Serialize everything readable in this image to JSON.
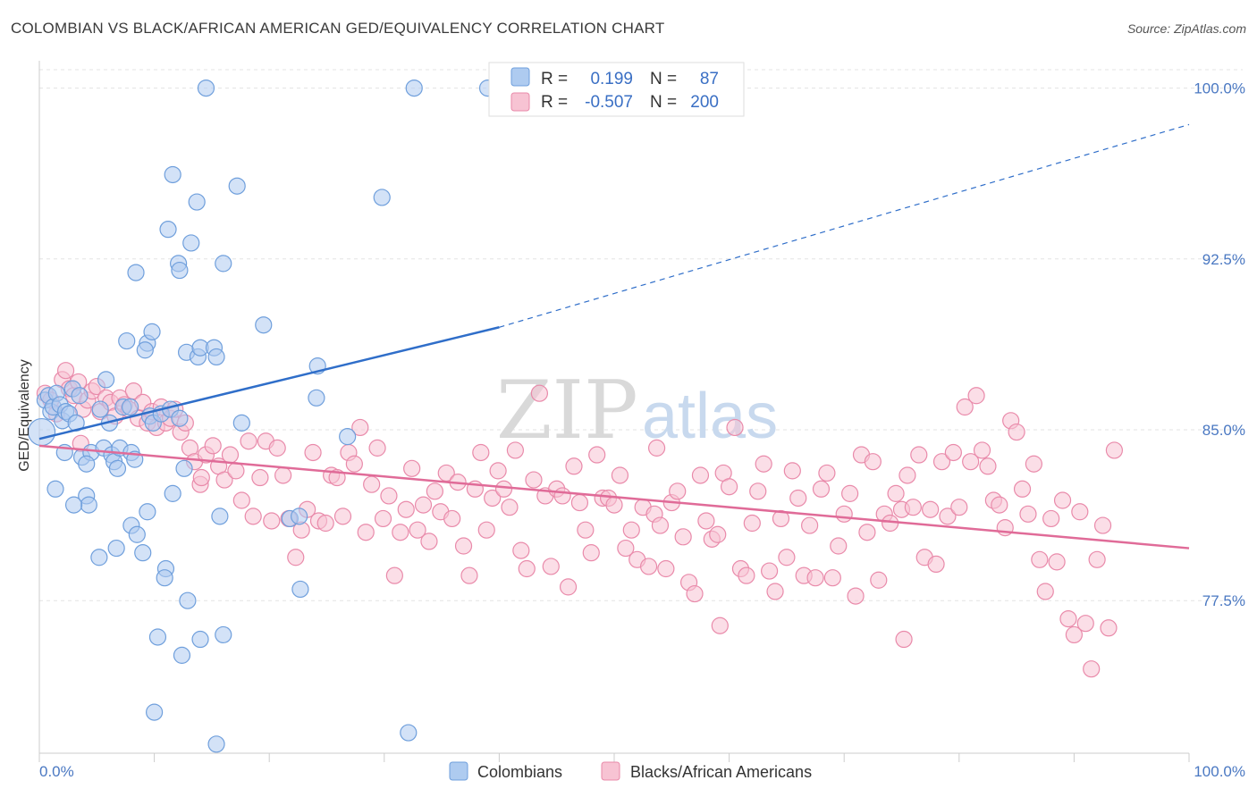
{
  "title": "COLOMBIAN VS BLACK/AFRICAN AMERICAN GED/EQUIVALENCY CORRELATION CHART",
  "source": "Source: ZipAtlas.com",
  "watermark": {
    "zip": "ZIP",
    "atlas": "atlas"
  },
  "legend_box": {
    "rows": [
      {
        "r_label": "R =",
        "r_value": "0.199",
        "n_label": "N =",
        "n_value": "87"
      },
      {
        "r_label": "R =",
        "r_value": "-0.507",
        "n_label": "N =",
        "n_value": "200"
      }
    ]
  },
  "colors": {
    "blue_fill": "#aecbf0",
    "blue_stroke": "#6f9fdc",
    "blue_line": "#2f6ec9",
    "pink_fill": "#f7c3d3",
    "pink_stroke": "#e98aaa",
    "pink_line": "#e06b98",
    "axis_text": "#4a78c2",
    "grid": "#e3e3e3"
  },
  "chart_data": {
    "type": "scatter",
    "title": "COLOMBIAN VS BLACK/AFRICAN AMERICAN GED/EQUIVALENCY CORRELATION CHART",
    "xlabel": "",
    "ylabel": "GED/Equivalency",
    "xlim": [
      0,
      100
    ],
    "ylim": [
      70.8,
      101.2
    ],
    "x_tick_labels": [
      "0.0%",
      "100.0%"
    ],
    "y_ticks": [
      77.5,
      85.0,
      92.5,
      100.0
    ],
    "y_tick_labels": [
      "77.5%",
      "85.0%",
      "92.5%",
      "100.0%"
    ],
    "grid": true,
    "legend": "top-center",
    "series": [
      {
        "name": "Colombians",
        "R": 0.199,
        "N": 87,
        "trend": {
          "x0": 0,
          "y0": 84.6,
          "x1": 40,
          "y1": 89.5,
          "dash_to_x": 100,
          "dash_to_y": 98.4
        },
        "points": [
          [
            0.5,
            86.3
          ],
          [
            0.8,
            86.5
          ],
          [
            1.0,
            85.8
          ],
          [
            1.2,
            86.0
          ],
          [
            1.5,
            86.6
          ],
          [
            1.8,
            86.1
          ],
          [
            2.0,
            85.4
          ],
          [
            2.3,
            85.8
          ],
          [
            2.6,
            85.7
          ],
          [
            2.9,
            86.8
          ],
          [
            3.2,
            85.3
          ],
          [
            3.5,
            86.5
          ],
          [
            3.7,
            83.8
          ],
          [
            4.5,
            84.0
          ],
          [
            2.2,
            84.0
          ],
          [
            1.4,
            82.4
          ],
          [
            4.1,
            83.5
          ],
          [
            5.3,
            85.9
          ],
          [
            5.8,
            87.2
          ],
          [
            6.1,
            85.3
          ],
          [
            5.6,
            84.2
          ],
          [
            6.3,
            83.9
          ],
          [
            6.5,
            83.6
          ],
          [
            7.0,
            84.2
          ],
          [
            6.8,
            83.3
          ],
          [
            8.0,
            84.0
          ],
          [
            8.3,
            83.7
          ],
          [
            7.3,
            86.0
          ],
          [
            7.9,
            86.0
          ],
          [
            9.6,
            85.6
          ],
          [
            9.9,
            85.3
          ],
          [
            10.6,
            85.7
          ],
          [
            11.4,
            85.9
          ],
          [
            12.2,
            85.5
          ],
          [
            12.6,
            83.3
          ],
          [
            11.6,
            82.2
          ],
          [
            4.1,
            82.1
          ],
          [
            4.3,
            81.7
          ],
          [
            3.0,
            81.7
          ],
          [
            9.4,
            81.4
          ],
          [
            8.0,
            80.8
          ],
          [
            8.5,
            80.4
          ],
          [
            6.7,
            79.8
          ],
          [
            5.2,
            79.4
          ],
          [
            9.0,
            79.6
          ],
          [
            11.0,
            78.9
          ],
          [
            10.9,
            78.5
          ],
          [
            12.9,
            77.5
          ],
          [
            14.0,
            75.8
          ],
          [
            10.3,
            75.9
          ],
          [
            12.4,
            75.1
          ],
          [
            16.0,
            76.0
          ],
          [
            10.0,
            72.6
          ],
          [
            15.4,
            71.2
          ],
          [
            32.1,
            71.7
          ],
          [
            21.8,
            81.1
          ],
          [
            22.6,
            81.2
          ],
          [
            15.7,
            81.2
          ],
          [
            22.7,
            78.0
          ],
          [
            24.1,
            86.4
          ],
          [
            24.2,
            87.8
          ],
          [
            26.8,
            84.7
          ],
          [
            17.6,
            85.3
          ],
          [
            7.6,
            88.9
          ],
          [
            9.4,
            88.8
          ],
          [
            9.2,
            88.5
          ],
          [
            12.8,
            88.4
          ],
          [
            13.8,
            88.2
          ],
          [
            14.0,
            88.6
          ],
          [
            15.2,
            88.6
          ],
          [
            15.4,
            88.2
          ],
          [
            19.5,
            89.6
          ],
          [
            9.8,
            89.3
          ],
          [
            8.4,
            91.9
          ],
          [
            11.2,
            93.8
          ],
          [
            12.1,
            92.3
          ],
          [
            12.2,
            92.0
          ],
          [
            13.2,
            93.2
          ],
          [
            16.0,
            92.3
          ],
          [
            13.7,
            95.0
          ],
          [
            11.6,
            96.2
          ],
          [
            17.2,
            95.7
          ],
          [
            29.8,
            95.2
          ],
          [
            14.5,
            100.0
          ],
          [
            32.6,
            100.0
          ],
          [
            39.0,
            100.0
          ],
          [
            0.2,
            84.9
          ]
        ]
      },
      {
        "name": "Blacks/African Americans",
        "R": -0.507,
        "N": 200,
        "trend": {
          "x0": 0,
          "y0": 84.3,
          "x1": 100,
          "y1": 79.8
        },
        "points": [
          [
            0.5,
            86.6
          ],
          [
            1.0,
            86.3
          ],
          [
            1.5,
            85.7
          ],
          [
            2.0,
            87.2
          ],
          [
            2.3,
            87.6
          ],
          [
            2.6,
            86.8
          ],
          [
            3.0,
            86.5
          ],
          [
            3.4,
            87.1
          ],
          [
            3.8,
            85.9
          ],
          [
            4.2,
            86.3
          ],
          [
            4.6,
            86.7
          ],
          [
            5.0,
            86.9
          ],
          [
            5.3,
            85.8
          ],
          [
            5.8,
            86.4
          ],
          [
            6.2,
            86.2
          ],
          [
            6.6,
            85.6
          ],
          [
            7.0,
            86.4
          ],
          [
            7.4,
            86.1
          ],
          [
            7.8,
            85.9
          ],
          [
            8.2,
            86.7
          ],
          [
            8.6,
            85.5
          ],
          [
            9.0,
            86.2
          ],
          [
            9.4,
            85.3
          ],
          [
            9.8,
            85.8
          ],
          [
            10.2,
            85.1
          ],
          [
            10.6,
            86.0
          ],
          [
            11.0,
            85.3
          ],
          [
            11.4,
            85.5
          ],
          [
            11.8,
            85.9
          ],
          [
            12.3,
            84.9
          ],
          [
            12.7,
            85.3
          ],
          [
            13.1,
            84.2
          ],
          [
            13.5,
            83.6
          ],
          [
            14.0,
            82.6
          ],
          [
            14.5,
            83.9
          ],
          [
            15.1,
            84.3
          ],
          [
            15.6,
            83.4
          ],
          [
            16.1,
            82.8
          ],
          [
            16.6,
            83.9
          ],
          [
            17.1,
            83.2
          ],
          [
            17.6,
            81.9
          ],
          [
            18.2,
            84.5
          ],
          [
            18.6,
            81.2
          ],
          [
            19.2,
            82.9
          ],
          [
            19.7,
            84.5
          ],
          [
            20.2,
            81.0
          ],
          [
            20.7,
            84.2
          ],
          [
            21.2,
            83.0
          ],
          [
            21.7,
            81.1
          ],
          [
            22.3,
            79.4
          ],
          [
            22.8,
            80.6
          ],
          [
            23.3,
            81.5
          ],
          [
            23.8,
            84.0
          ],
          [
            24.3,
            81.0
          ],
          [
            24.9,
            80.9
          ],
          [
            25.4,
            83.0
          ],
          [
            25.9,
            82.9
          ],
          [
            26.4,
            81.2
          ],
          [
            26.9,
            84.0
          ],
          [
            27.4,
            83.5
          ],
          [
            27.9,
            85.1
          ],
          [
            28.4,
            80.5
          ],
          [
            28.9,
            82.6
          ],
          [
            29.4,
            84.2
          ],
          [
            29.9,
            81.1
          ],
          [
            30.4,
            82.1
          ],
          [
            30.9,
            78.6
          ],
          [
            31.4,
            80.5
          ],
          [
            31.9,
            81.5
          ],
          [
            32.4,
            83.3
          ],
          [
            32.9,
            80.6
          ],
          [
            33.4,
            81.7
          ],
          [
            33.9,
            80.1
          ],
          [
            34.4,
            82.3
          ],
          [
            34.9,
            81.4
          ],
          [
            35.4,
            83.1
          ],
          [
            35.9,
            81.1
          ],
          [
            36.4,
            82.7
          ],
          [
            36.9,
            79.9
          ],
          [
            37.4,
            78.6
          ],
          [
            37.9,
            82.4
          ],
          [
            38.4,
            84.0
          ],
          [
            38.9,
            80.6
          ],
          [
            39.4,
            82.0
          ],
          [
            39.9,
            83.2
          ],
          [
            40.4,
            82.4
          ],
          [
            40.9,
            81.6
          ],
          [
            41.4,
            84.1
          ],
          [
            41.9,
            79.7
          ],
          [
            42.4,
            78.9
          ],
          [
            43.0,
            82.8
          ],
          [
            43.5,
            86.6
          ],
          [
            44.0,
            82.1
          ],
          [
            44.5,
            79.0
          ],
          [
            45.0,
            82.4
          ],
          [
            45.5,
            82.1
          ],
          [
            46.0,
            78.1
          ],
          [
            46.5,
            83.4
          ],
          [
            47.0,
            81.8
          ],
          [
            47.5,
            80.6
          ],
          [
            48.0,
            79.6
          ],
          [
            48.5,
            83.9
          ],
          [
            49.0,
            82.0
          ],
          [
            49.5,
            82.0
          ],
          [
            50.0,
            81.7
          ],
          [
            50.5,
            83.0
          ],
          [
            51.0,
            79.8
          ],
          [
            51.5,
            80.6
          ],
          [
            52.0,
            79.3
          ],
          [
            52.5,
            81.6
          ],
          [
            53.0,
            79.0
          ],
          [
            53.5,
            81.3
          ],
          [
            54.0,
            80.8
          ],
          [
            54.5,
            78.9
          ],
          [
            55.0,
            81.8
          ],
          [
            55.5,
            82.3
          ],
          [
            56.0,
            80.3
          ],
          [
            56.5,
            78.3
          ],
          [
            57.0,
            77.8
          ],
          [
            57.5,
            83.0
          ],
          [
            58.0,
            81.0
          ],
          [
            58.5,
            80.2
          ],
          [
            59.0,
            80.4
          ],
          [
            59.5,
            83.1
          ],
          [
            60.0,
            82.5
          ],
          [
            60.5,
            85.1
          ],
          [
            61.0,
            78.9
          ],
          [
            61.5,
            78.6
          ],
          [
            62.0,
            80.9
          ],
          [
            62.5,
            82.3
          ],
          [
            63.0,
            83.5
          ],
          [
            63.5,
            78.8
          ],
          [
            64.0,
            77.9
          ],
          [
            64.5,
            81.1
          ],
          [
            65.0,
            79.4
          ],
          [
            65.5,
            83.2
          ],
          [
            66.0,
            82.0
          ],
          [
            66.5,
            78.6
          ],
          [
            67.0,
            80.8
          ],
          [
            67.5,
            78.5
          ],
          [
            68.0,
            82.4
          ],
          [
            68.5,
            83.1
          ],
          [
            69.0,
            78.5
          ],
          [
            69.5,
            79.9
          ],
          [
            70.0,
            81.3
          ],
          [
            70.5,
            82.2
          ],
          [
            71.0,
            77.7
          ],
          [
            71.5,
            83.9
          ],
          [
            72.0,
            80.5
          ],
          [
            72.5,
            83.6
          ],
          [
            73.0,
            78.4
          ],
          [
            73.5,
            81.3
          ],
          [
            74.0,
            80.9
          ],
          [
            74.5,
            82.2
          ],
          [
            75.0,
            81.5
          ],
          [
            75.5,
            83.0
          ],
          [
            76.0,
            81.6
          ],
          [
            76.5,
            83.9
          ],
          [
            77.0,
            79.4
          ],
          [
            77.5,
            81.5
          ],
          [
            78.0,
            79.1
          ],
          [
            78.5,
            83.6
          ],
          [
            79.0,
            81.2
          ],
          [
            79.5,
            84.0
          ],
          [
            80.0,
            81.6
          ],
          [
            80.5,
            86.0
          ],
          [
            81.0,
            83.6
          ],
          [
            81.5,
            86.5
          ],
          [
            82.0,
            84.1
          ],
          [
            82.5,
            83.4
          ],
          [
            83.0,
            81.9
          ],
          [
            83.5,
            81.7
          ],
          [
            84.0,
            80.7
          ],
          [
            84.5,
            85.4
          ],
          [
            85.0,
            84.9
          ],
          [
            85.5,
            82.4
          ],
          [
            86.0,
            81.3
          ],
          [
            86.5,
            83.5
          ],
          [
            87.0,
            79.3
          ],
          [
            87.5,
            77.9
          ],
          [
            88.0,
            81.1
          ],
          [
            88.5,
            79.2
          ],
          [
            89.0,
            81.9
          ],
          [
            89.5,
            76.7
          ],
          [
            90.0,
            76.0
          ],
          [
            90.5,
            81.4
          ],
          [
            91.0,
            76.5
          ],
          [
            91.5,
            74.5
          ],
          [
            92.0,
            79.3
          ],
          [
            92.5,
            80.8
          ],
          [
            93.0,
            76.3
          ],
          [
            93.5,
            84.1
          ],
          [
            53.7,
            84.2
          ],
          [
            14.1,
            82.9
          ],
          [
            3.6,
            84.4
          ],
          [
            59.2,
            76.4
          ],
          [
            75.2,
            75.8
          ]
        ]
      }
    ]
  }
}
